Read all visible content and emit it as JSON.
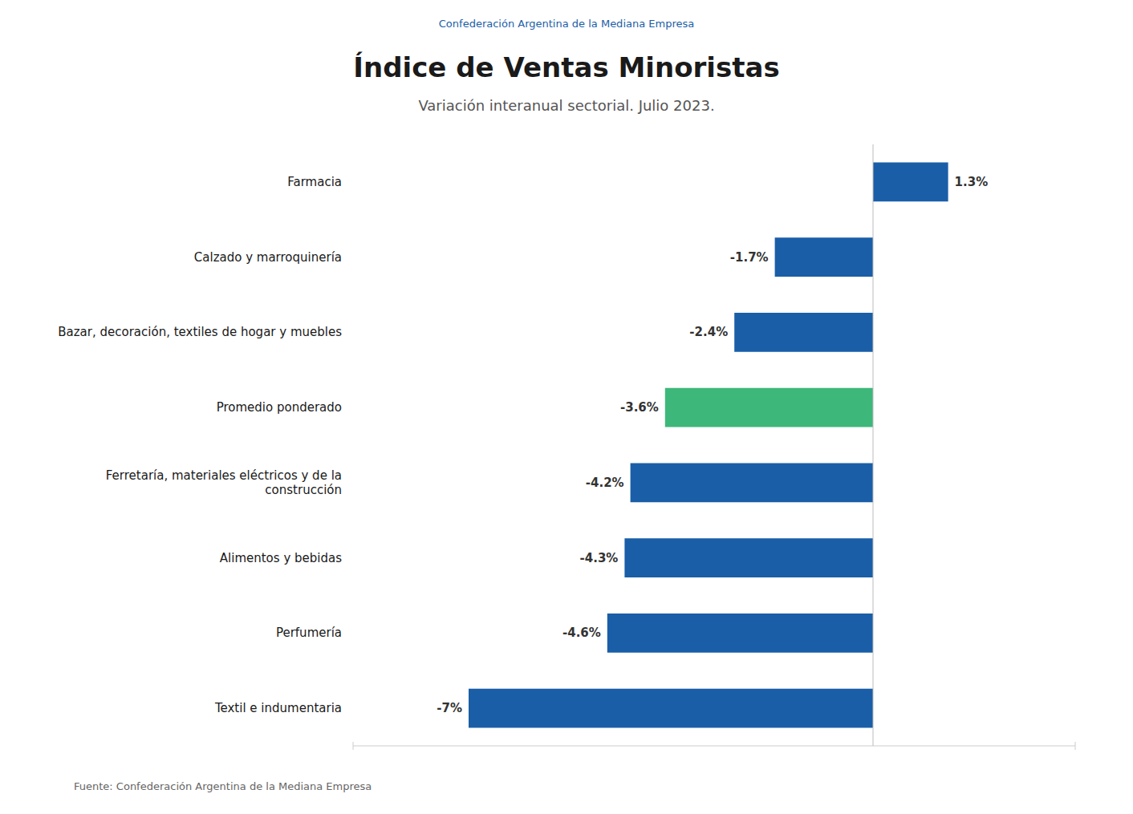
{
  "chart_data": {
    "type": "bar",
    "orientation": "horizontal",
    "title": "Índice de Ventas Minoristas",
    "subtitle": "Variación interanual sectorial. Julio 2023.",
    "annotations": [
      "Confederación Argentina de la Mediana Empresa",
      "Fuente: Confederación Argentina de la Mediana Empresa"
    ],
    "categories": [
      "Textil e indumentaria",
      "Perfumería",
      "Alimentos y bebidas",
      "Ferretaría, materiales eléctricos y de la\nconstrucción",
      "Promedio ponderado",
      "Bazar, decoración, textiles de hogar y muebles",
      "Calzado y marroquinería",
      "Farmacia"
    ],
    "values": [
      -7.0,
      -4.6,
      -4.3,
      -4.2,
      -3.6,
      -2.4,
      -1.7,
      1.3
    ],
    "value_labels": [
      "-7%",
      "-4.6%",
      "-4.3%",
      "-4.2%",
      "-3.6%",
      "-2.4%",
      "-1.7%",
      "1.3%"
    ],
    "colors": [
      "#1a5ea8",
      "#1a5ea8",
      "#1a5ea8",
      "#1a5ea8",
      "#3db87a",
      "#1a5ea8",
      "#1a5ea8",
      "#1a5ea8"
    ],
    "xlim": [
      -9.0,
      3.5
    ],
    "data_labels": true,
    "tick_labels": "y",
    "grid": false
  }
}
